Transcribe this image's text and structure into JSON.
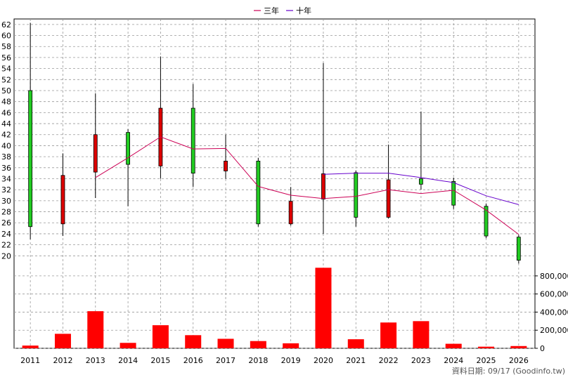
{
  "legend": {
    "items": [
      {
        "label": "三年",
        "color": "#cc0055"
      },
      {
        "label": "十年",
        "color": "#6600cc"
      }
    ]
  },
  "footer": {
    "source_label": "資料日期: 09/17  (Goodinfo.tw)"
  },
  "chart_data": [
    {
      "type": "candlestick",
      "title": "",
      "categories": [
        "2011",
        "2012",
        "2013",
        "2014",
        "2015",
        "2016",
        "2017",
        "2018",
        "2019",
        "2020",
        "2021",
        "2022",
        "2023",
        "2024",
        "2025",
        "2026"
      ],
      "ylim": [
        18,
        63
      ],
      "yticks": [
        20,
        22,
        24,
        26,
        28,
        30,
        32,
        34,
        36,
        38,
        40,
        42,
        44,
        46,
        48,
        50,
        52,
        54,
        56,
        58,
        60,
        62
      ],
      "grid": true,
      "legend_position": "top-center",
      "up_color": "#22cc22",
      "down_color": "#dd0000",
      "candles": [
        {
          "year": "2011",
          "open": 25.3,
          "high": 62.3,
          "low": 23.0,
          "close": 50.0
        },
        {
          "year": "2012",
          "open": 34.6,
          "high": 38.6,
          "low": 23.6,
          "close": 25.8
        },
        {
          "year": "2013",
          "open": 42.0,
          "high": 49.5,
          "low": 30.5,
          "close": 35.2
        },
        {
          "year": "2014",
          "open": 36.6,
          "high": 43.0,
          "low": 29.0,
          "close": 42.4
        },
        {
          "year": "2015",
          "open": 46.8,
          "high": 56.2,
          "low": 34.0,
          "close": 36.3
        },
        {
          "year": "2016",
          "open": 35.0,
          "high": 51.2,
          "low": 32.5,
          "close": 46.8
        },
        {
          "year": "2017",
          "open": 37.2,
          "high": 42.0,
          "low": 34.0,
          "close": 35.4
        },
        {
          "year": "2018",
          "open": 25.8,
          "high": 37.8,
          "low": 25.3,
          "close": 37.2
        },
        {
          "year": "2019",
          "open": 29.9,
          "high": 32.5,
          "low": 25.5,
          "close": 25.8
        },
        {
          "year": "2020",
          "open": 34.9,
          "high": 55.0,
          "low": 24.0,
          "close": 30.3
        },
        {
          "year": "2021",
          "open": 27.0,
          "high": 35.5,
          "low": 25.3,
          "close": 35.1
        },
        {
          "year": "2022",
          "open": 33.8,
          "high": 40.2,
          "low": 26.8,
          "close": 27.0
        },
        {
          "year": "2023",
          "open": 33.0,
          "high": 46.2,
          "low": 32.0,
          "close": 34.0
        },
        {
          "year": "2024",
          "open": 29.2,
          "high": 34.2,
          "low": 28.5,
          "close": 33.5
        },
        {
          "year": "2025",
          "open": 23.6,
          "high": 29.5,
          "low": 23.2,
          "close": 29.0
        },
        {
          "year": "2026",
          "open": 19.2,
          "high": 23.8,
          "low": 18.6,
          "close": 23.4
        }
      ],
      "series": [
        {
          "name": "三年",
          "color": "#cc0055",
          "values": [
            null,
            null,
            34.2,
            37.8,
            41.6,
            39.4,
            39.5,
            32.6,
            31.0,
            30.4,
            30.8,
            32.0,
            31.3,
            31.9,
            28.3,
            23.9
          ]
        },
        {
          "name": "十年",
          "color": "#6600cc",
          "values": [
            null,
            null,
            null,
            null,
            null,
            null,
            null,
            null,
            null,
            34.8,
            35.0,
            35.0,
            34.2,
            33.3,
            30.9,
            29.3
          ]
        }
      ]
    },
    {
      "type": "bar",
      "title": "",
      "categories": [
        "2011",
        "2012",
        "2013",
        "2014",
        "2015",
        "2016",
        "2017",
        "2018",
        "2019",
        "2020",
        "2021",
        "2022",
        "2023",
        "2024",
        "2025",
        "2026"
      ],
      "values": [
        30000,
        160000,
        410000,
        60000,
        255000,
        145000,
        105000,
        80000,
        55000,
        890000,
        100000,
        285000,
        300000,
        50000,
        18000,
        25000
      ],
      "ylim": [
        0,
        900000
      ],
      "yticks": [
        0,
        200000,
        400000,
        600000,
        800000
      ],
      "ytick_labels": [
        "0",
        "200,000",
        "400,000",
        "600,000",
        "800,000"
      ],
      "color": "#ff0000",
      "grid": true
    }
  ]
}
